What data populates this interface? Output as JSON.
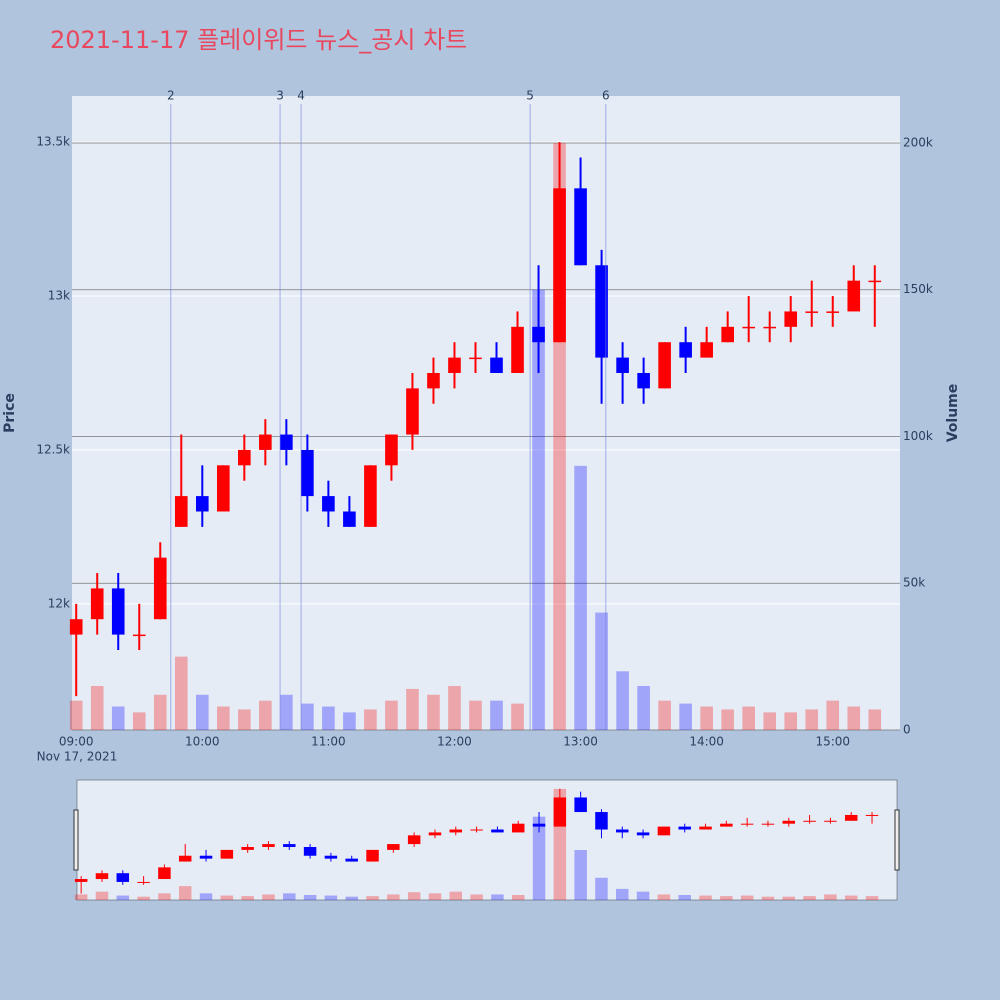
{
  "chart_data": {
    "type": "candlestick",
    "title": "2021-11-17 플레이위드 뉴스_공시 차트",
    "y_label": "Price",
    "y2_label": "Volume",
    "x_sublabel": "Nov 17, 2021",
    "increasing_color": "#ff0000",
    "decreasing_color": "#0000ff",
    "x": [
      "09:00",
      "09:10",
      "09:20",
      "09:30",
      "09:40",
      "09:50",
      "10:00",
      "10:10",
      "10:20",
      "10:30",
      "10:40",
      "10:50",
      "11:00",
      "11:10",
      "11:20",
      "11:30",
      "11:40",
      "11:50",
      "12:00",
      "12:10",
      "12:20",
      "12:30",
      "12:40",
      "12:50",
      "13:00",
      "13:10",
      "13:20",
      "13:30",
      "13:40",
      "13:50",
      "14:00",
      "14:10",
      "14:20",
      "14:30",
      "14:40",
      "14:50",
      "15:00",
      "15:10",
      "15:20"
    ],
    "open": [
      11900,
      11950,
      12050,
      11900,
      11950,
      12250,
      12350,
      12300,
      12450,
      12500,
      12550,
      12500,
      12350,
      12300,
      12250,
      12450,
      12550,
      12700,
      12750,
      12800,
      12800,
      12750,
      12900,
      12850,
      13350,
      13100,
      12800,
      12750,
      12700,
      12850,
      12800,
      12850,
      12900,
      12900,
      12900,
      12950,
      12950,
      12950,
      13050
    ],
    "high": [
      12000,
      12100,
      12100,
      12000,
      12200,
      12550,
      12450,
      12450,
      12550,
      12600,
      12600,
      12550,
      12400,
      12350,
      12450,
      12550,
      12750,
      12800,
      12850,
      12850,
      12850,
      12950,
      13100,
      13500,
      13450,
      13150,
      12850,
      12800,
      12850,
      12900,
      12900,
      12950,
      13000,
      12950,
      13000,
      13050,
      13000,
      13100,
      13100
    ],
    "low": [
      11700,
      11900,
      11850,
      11850,
      11950,
      12250,
      12250,
      12300,
      12400,
      12450,
      12450,
      12300,
      12250,
      12250,
      12250,
      12400,
      12500,
      12650,
      12700,
      12750,
      12750,
      12750,
      12750,
      12850,
      13100,
      12650,
      12650,
      12650,
      12700,
      12750,
      12800,
      12850,
      12850,
      12850,
      12850,
      12900,
      12900,
      12950,
      12900
    ],
    "close": [
      11950,
      12050,
      11900,
      11900,
      12150,
      12350,
      12300,
      12450,
      12500,
      12550,
      12500,
      12350,
      12300,
      12250,
      12450,
      12550,
      12700,
      12750,
      12800,
      12800,
      12750,
      12900,
      12850,
      13350,
      13100,
      12800,
      12750,
      12700,
      12850,
      12800,
      12850,
      12900,
      12900,
      12900,
      12950,
      12950,
      12950,
      13050,
      13050
    ],
    "volume": [
      10000,
      15000,
      8000,
      6000,
      12000,
      25000,
      12000,
      8000,
      7000,
      10000,
      12000,
      9000,
      8000,
      6000,
      7000,
      10000,
      14000,
      12000,
      15000,
      10000,
      10000,
      9000,
      150000,
      200000,
      90000,
      40000,
      20000,
      15000,
      10000,
      9000,
      8000,
      7000,
      8000,
      6000,
      6000,
      7000,
      10000,
      8000,
      7000
    ],
    "xlim": [
      "08:58",
      "15:32"
    ],
    "xticks": [
      "09:00",
      "10:00",
      "11:00",
      "12:00",
      "13:00",
      "14:00",
      "15:00"
    ],
    "ylim": [
      11590,
      13650
    ],
    "yticks": [
      {
        "value": 12000,
        "label": "12k"
      },
      {
        "value": 12500,
        "label": "12.5k"
      },
      {
        "value": 13000,
        "label": "13k"
      },
      {
        "value": 13500,
        "label": "13.5k"
      }
    ],
    "y2lim": [
      0,
      216000
    ],
    "y2ticks": [
      0,
      {
        "value": 50000,
        "label": "50k"
      },
      {
        "value": 100000,
        "label": "100k"
      },
      {
        "value": 150000,
        "label": "150k"
      },
      {
        "value": 200000,
        "label": "200k"
      }
    ],
    "annotations": [
      {
        "label": "2",
        "x": "09:45"
      },
      {
        "label": "3",
        "x": "10:37"
      },
      {
        "label": "4",
        "x": "10:47"
      },
      {
        "label": "5",
        "x": "12:36"
      },
      {
        "label": "6",
        "x": "13:12"
      }
    ],
    "grid": true,
    "range_slider": true
  }
}
